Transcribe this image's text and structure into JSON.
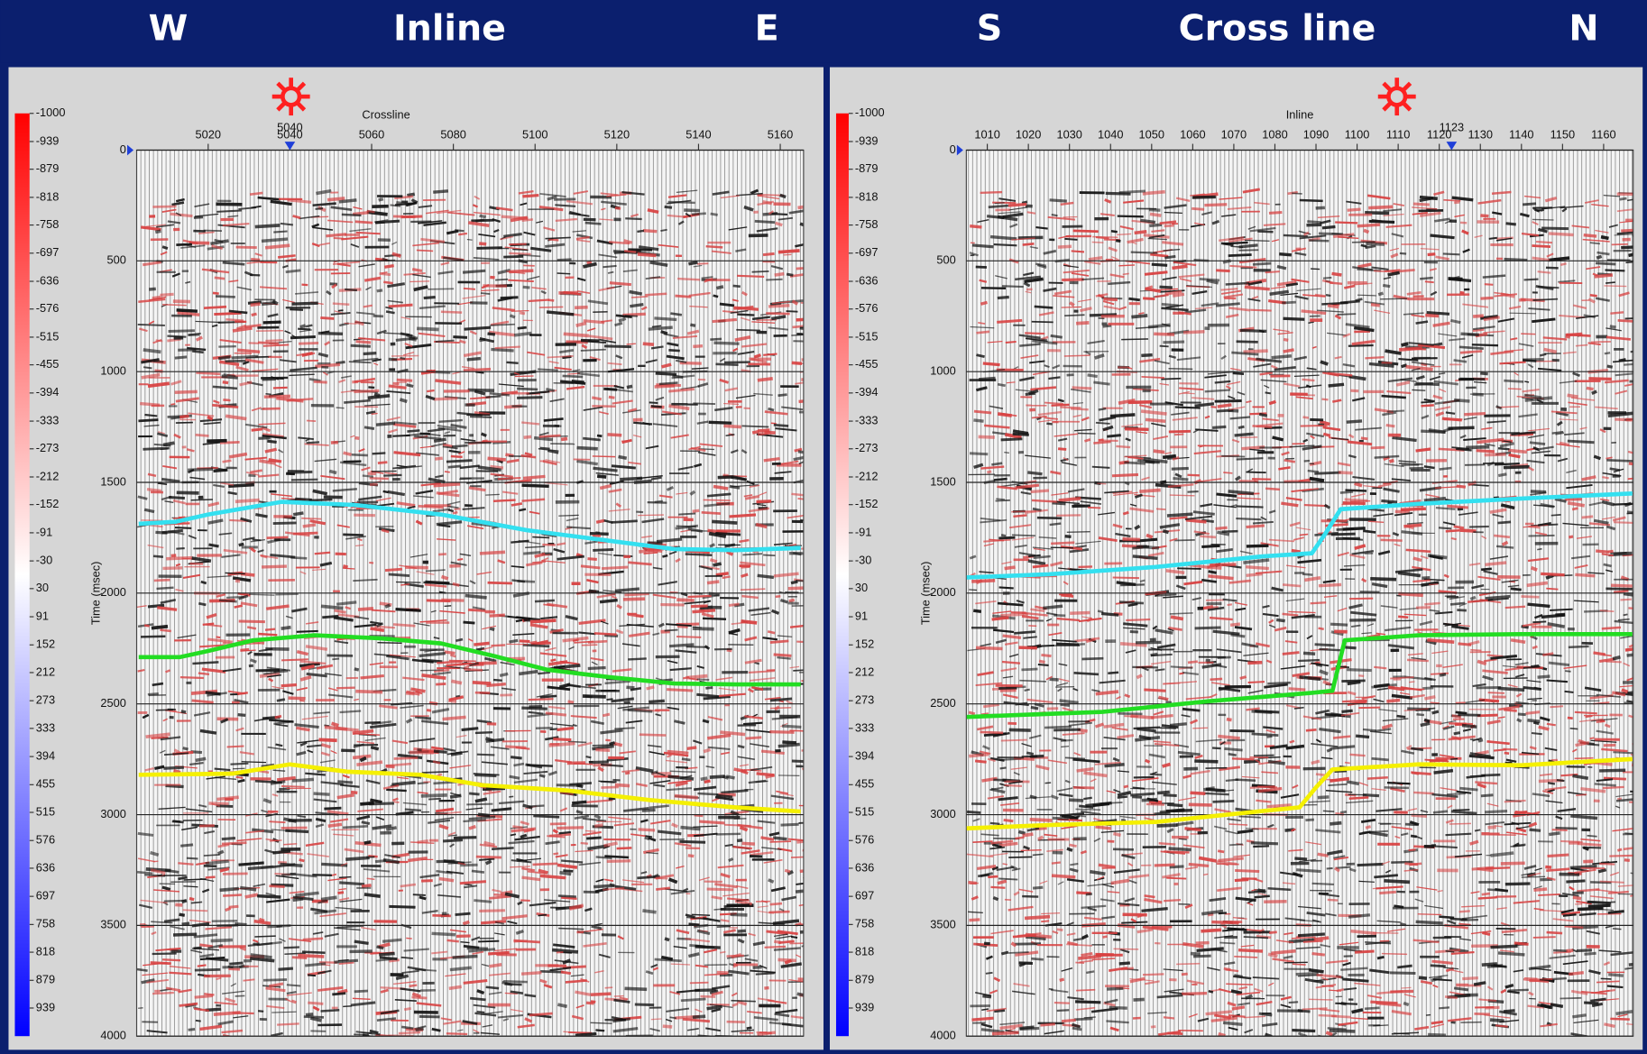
{
  "header": {
    "labels": [
      "W",
      "Inline",
      "E",
      "S",
      "Cross line",
      "N"
    ]
  },
  "chart_data": [
    {
      "type": "line",
      "xlabel": "Crossline",
      "ylabel": "Time (msec)",
      "xlim": [
        5002.5,
        5165.7
      ],
      "xticks": [
        5020,
        5040,
        5060,
        5080,
        5100,
        5120,
        5140,
        5160
      ],
      "ylim": [
        0,
        4000
      ],
      "y_inverted": true,
      "yticks": [
        0,
        500,
        1000,
        1500,
        2000,
        2500,
        3000,
        3500,
        4000
      ],
      "grid": true,
      "marker": 5040,
      "marker_color": "#1f3fd8",
      "series": [
        {
          "color": "#33e0f0",
          "x": [
            5003,
            5012,
            5020,
            5038,
            5056,
            5077,
            5098,
            5118,
            5134,
            5149,
            5165
          ],
          "values": [
            1687,
            1678,
            1645,
            1588,
            1602,
            1645,
            1716,
            1763,
            1801,
            1806,
            1796
          ]
        },
        {
          "color": "#22dd22",
          "x": [
            5003,
            5013,
            5020,
            5031,
            5046,
            5062,
            5077,
            5090,
            5103,
            5118,
            5134,
            5149,
            5165
          ],
          "values": [
            2289,
            2289,
            2261,
            2213,
            2190,
            2204,
            2227,
            2284,
            2346,
            2379,
            2408,
            2412,
            2412
          ]
        },
        {
          "color": "#f5f000",
          "x": [
            5003,
            5026,
            5040,
            5054,
            5072,
            5087,
            5108,
            5128,
            5149,
            5165
          ],
          "values": [
            2820,
            2815,
            2773,
            2806,
            2820,
            2867,
            2891,
            2934,
            2967,
            2986
          ]
        }
      ],
      "colorbar": {
        "lim": [
          -1000,
          1000
        ],
        "colors": [
          "#ff0000",
          "#ffffff",
          "#0000ff"
        ],
        "ticks": [
          -1000,
          -939,
          -879,
          -818,
          -758,
          -697,
          -636,
          -576,
          -515,
          -455,
          -394,
          -333,
          -273,
          -212,
          -152,
          -91,
          -30,
          30,
          91,
          152,
          212,
          273,
          333,
          394,
          455,
          515,
          576,
          636,
          697,
          758,
          818,
          879,
          939
        ]
      }
    },
    {
      "type": "line",
      "xlabel": "Inline",
      "ylabel": "Time (msec)",
      "xlim": [
        1004.9,
        1167.2
      ],
      "xticks": [
        1010,
        1020,
        1030,
        1040,
        1050,
        1060,
        1070,
        1080,
        1090,
        1100,
        1110,
        1120,
        1130,
        1140,
        1150,
        1160
      ],
      "ylim": [
        0,
        4000
      ],
      "y_inverted": true,
      "yticks": [
        0,
        500,
        1000,
        1500,
        2000,
        2500,
        3000,
        3500,
        4000
      ],
      "grid": true,
      "marker": 1123,
      "marker_color": "#1f3fd8",
      "series": [
        {
          "color": "#33e0f0",
          "x": [
            1005,
            1025,
            1051,
            1077,
            1089,
            1092,
            1096,
            1115,
            1140,
            1167
          ],
          "values": [
            1929,
            1915,
            1882,
            1834,
            1820,
            1739,
            1621,
            1597,
            1573,
            1550
          ]
        },
        {
          "color": "#22dd22",
          "x": [
            1005,
            1038,
            1064,
            1089,
            1094,
            1097,
            1115,
            1140,
            1167
          ],
          "values": [
            2559,
            2536,
            2488,
            2450,
            2441,
            2213,
            2190,
            2185,
            2185
          ]
        },
        {
          "color": "#f5f000",
          "x": [
            1005,
            1025,
            1051,
            1071,
            1086,
            1090,
            1094,
            1115,
            1140,
            1167
          ],
          "values": [
            3062,
            3047,
            3033,
            2995,
            2967,
            2877,
            2796,
            2773,
            2777,
            2749
          ]
        }
      ],
      "colorbar": {
        "lim": [
          -1000,
          1000
        ],
        "colors": [
          "#ff0000",
          "#ffffff",
          "#0000ff"
        ],
        "ticks": [
          -1000,
          -939,
          -879,
          -818,
          -758,
          -697,
          -636,
          -576,
          -515,
          -455,
          -394,
          -333,
          -273,
          -212,
          -152,
          -91,
          -30,
          30,
          91,
          152,
          212,
          273,
          333,
          394,
          455,
          515,
          576,
          636,
          697,
          758,
          818,
          879,
          939
        ]
      }
    }
  ]
}
